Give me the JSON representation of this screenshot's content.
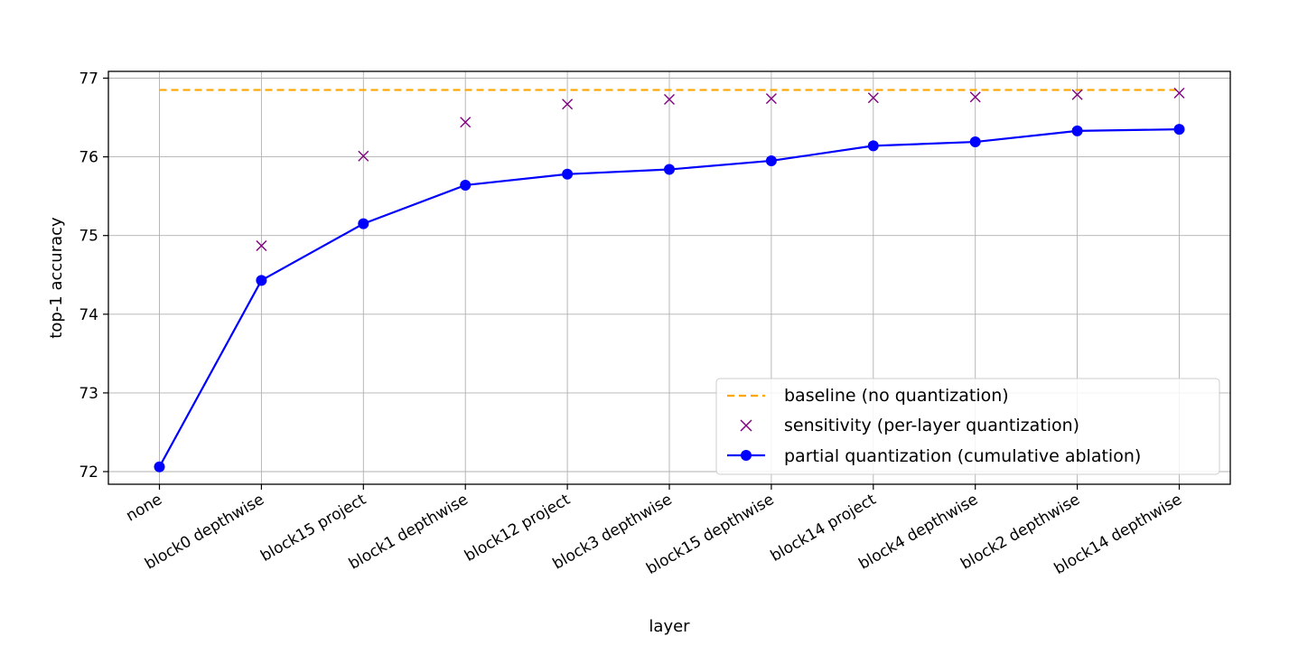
{
  "chart_data": {
    "type": "line",
    "xlabel": "layer",
    "ylabel": "top-1 accuracy",
    "categories": [
      "none",
      "block0 depthwise",
      "block15 project",
      "block1 depthwise",
      "block12 project",
      "block3 depthwise",
      "block15 depthwise",
      "block14 project",
      "block4 depthwise",
      "block2 depthwise",
      "block14 depthwise"
    ],
    "ylim": [
      71.83,
      77.1
    ],
    "yticks": [
      72,
      73,
      74,
      75,
      76,
      77
    ],
    "grid": true,
    "legend_position": "lower-right",
    "baseline": {
      "name": "baseline (no quantization)",
      "value": 76.85,
      "color": "#ffa500",
      "style": "dashed"
    },
    "series": [
      {
        "name": "sensitivity (per-layer quantization)",
        "marker": "x",
        "color": "#800080",
        "values": [
          null,
          74.87,
          76.01,
          76.44,
          76.67,
          76.73,
          76.74,
          76.75,
          76.76,
          76.79,
          76.81
        ]
      },
      {
        "name": "partial quantization (cumulative ablation)",
        "marker": "circle",
        "line": true,
        "color": "#0000ff",
        "values": [
          72.06,
          74.43,
          75.15,
          75.64,
          75.78,
          75.84,
          75.95,
          76.14,
          76.19,
          76.33,
          76.35
        ]
      }
    ]
  }
}
